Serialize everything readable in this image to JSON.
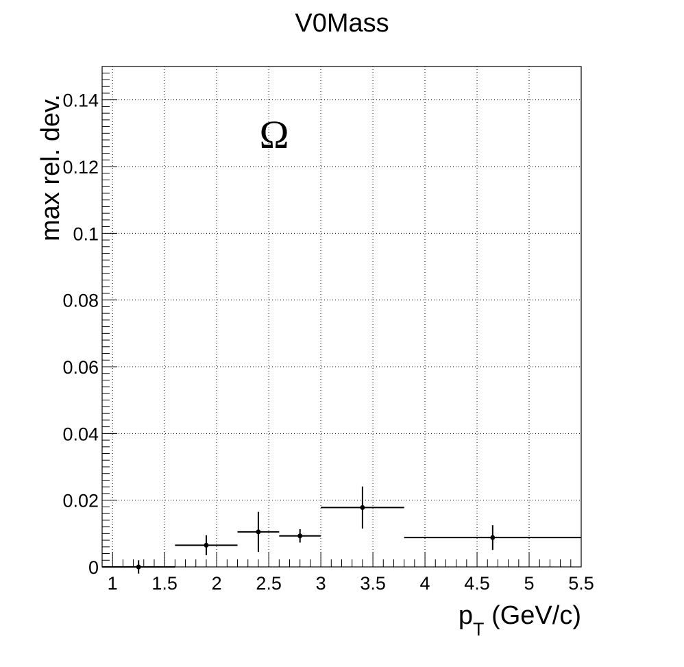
{
  "chart_data": {
    "type": "scatter",
    "title": "V0Mass",
    "xlabel": "p",
    "xlabel_sub": "T",
    "xlabel_suffix": " (GeV/c)",
    "ylabel": "max rel. dev.",
    "annotation": "Ω",
    "xlim": [
      0.9,
      5.5
    ],
    "ylim": [
      0,
      0.15
    ],
    "x_ticks": [
      1,
      1.5,
      2,
      2.5,
      3,
      3.5,
      4,
      4.5,
      5,
      5.5
    ],
    "x_tick_labels": [
      "1",
      "1.5",
      "2",
      "2.5",
      "3",
      "3.5",
      "4",
      "4.5",
      "5",
      "5.5"
    ],
    "y_ticks": [
      0,
      0.02,
      0.04,
      0.06,
      0.08,
      0.1,
      0.12,
      0.14
    ],
    "y_tick_labels": [
      "0",
      "0.02",
      "0.04",
      "0.06",
      "0.08",
      "0.1",
      "0.12",
      "0.14"
    ],
    "grid": true,
    "series": [
      {
        "points": [
          {
            "x": 1.25,
            "xlo": 0.9,
            "xhi": 1.6,
            "y": 0.0,
            "yerr": 0.002
          },
          {
            "x": 1.9,
            "xlo": 1.6,
            "xhi": 2.2,
            "y": 0.0065,
            "yerr": 0.003
          },
          {
            "x": 2.4,
            "xlo": 2.2,
            "xhi": 2.6,
            "y": 0.0105,
            "yerr": 0.006
          },
          {
            "x": 2.8,
            "xlo": 2.6,
            "xhi": 3.0,
            "y": 0.0093,
            "yerr": 0.002
          },
          {
            "x": 3.4,
            "xlo": 3.0,
            "xhi": 3.8,
            "y": 0.0178,
            "yerr": 0.0063
          },
          {
            "x": 4.65,
            "xlo": 3.8,
            "xhi": 5.5,
            "y": 0.0088,
            "yerr": 0.0037
          }
        ]
      }
    ]
  }
}
